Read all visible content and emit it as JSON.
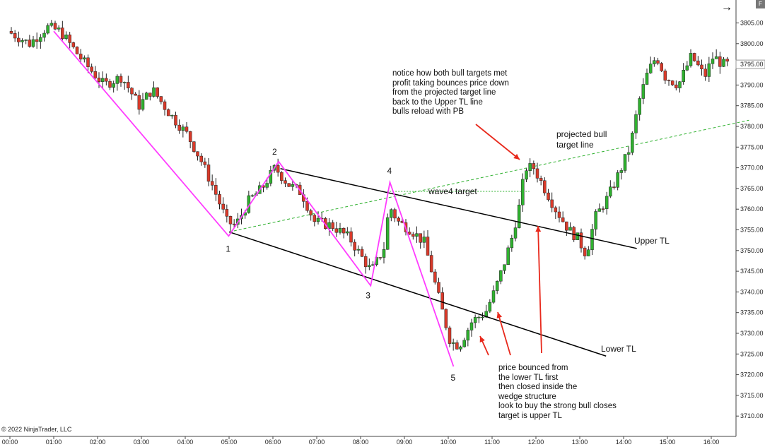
{
  "chart_data": {
    "type": "candlestick",
    "instrument_note": "© 2022 NinjaTrader, LLC",
    "y_axis": {
      "ticks": [
        "3805.00",
        "3800.00",
        "3795.00",
        "3790.00",
        "3785.00",
        "3780.00",
        "3775.00",
        "3770.00",
        "3765.00",
        "3760.00",
        "3755.00",
        "3750.00",
        "3745.00",
        "3740.00",
        "3735.00",
        "3730.00",
        "3725.00",
        "3720.00",
        "3715.00",
        "3710.00"
      ],
      "current_price_label": "3795.00",
      "range": [
        3707,
        3810
      ]
    },
    "x_axis": {
      "ticks": [
        "00:00",
        "01:00",
        "02:00",
        "03:00",
        "04:00",
        "05:00",
        "06:00",
        "07:00",
        "08:00",
        "09:00",
        "10:00",
        "11:00",
        "12:00",
        "13:00",
        "14:00",
        "15:00",
        "16:00"
      ]
    },
    "colors": {
      "up": "#2fb12f",
      "down": "#d93a2a",
      "wave": "#ff3cff",
      "trendline": "#000000",
      "target_line": "#2fb12f",
      "arrow": "#e8291c"
    },
    "price_path": [
      [
        0.0,
        3803
      ],
      [
        0.5,
        3800
      ],
      [
        0.9,
        3804
      ],
      [
        1.2,
        3803
      ],
      [
        1.7,
        3796
      ],
      [
        2.2,
        3790
      ],
      [
        2.6,
        3792
      ],
      [
        3.0,
        3785
      ],
      [
        3.3,
        3789
      ],
      [
        3.7,
        3783
      ],
      [
        4.1,
        3778
      ],
      [
        4.4,
        3772
      ],
      [
        4.7,
        3765
      ],
      [
        5.0,
        3757
      ],
      [
        5.2,
        3756
      ],
      [
        5.5,
        3762
      ],
      [
        5.8,
        3765
      ],
      [
        6.1,
        3770
      ],
      [
        6.4,
        3766
      ],
      [
        6.7,
        3764
      ],
      [
        7.0,
        3757
      ],
      [
        7.4,
        3756
      ],
      [
        7.8,
        3753
      ],
      [
        8.1,
        3748
      ],
      [
        8.3,
        3745
      ],
      [
        8.6,
        3751
      ],
      [
        8.7,
        3761
      ],
      [
        8.9,
        3757
      ],
      [
        9.2,
        3755
      ],
      [
        9.5,
        3752
      ],
      [
        9.8,
        3740
      ],
      [
        10.1,
        3728
      ],
      [
        10.3,
        3727
      ],
      [
        10.6,
        3733
      ],
      [
        10.9,
        3735
      ],
      [
        11.1,
        3740
      ],
      [
        11.3,
        3746
      ],
      [
        11.5,
        3753
      ],
      [
        11.7,
        3762
      ],
      [
        11.8,
        3770
      ],
      [
        12.0,
        3770
      ],
      [
        12.2,
        3766
      ],
      [
        12.5,
        3760
      ],
      [
        12.8,
        3755
      ],
      [
        13.0,
        3753
      ],
      [
        13.2,
        3749
      ],
      [
        13.4,
        3758
      ],
      [
        13.7,
        3763
      ],
      [
        14.0,
        3770
      ],
      [
        14.2,
        3775
      ],
      [
        14.4,
        3786
      ],
      [
        14.6,
        3793
      ],
      [
        14.8,
        3797
      ],
      [
        15.0,
        3792
      ],
      [
        15.3,
        3790
      ],
      [
        15.6,
        3797
      ],
      [
        15.9,
        3792
      ],
      [
        16.1,
        3797
      ],
      [
        16.3,
        3795
      ]
    ],
    "wave_points": [
      {
        "label": "1",
        "x": 4.99,
        "y": 3753.5
      },
      {
        "label": "2",
        "x": 6.13,
        "y": 3771.5
      },
      {
        "label": "3",
        "x": 8.23,
        "y": 3741.5
      },
      {
        "label": "4",
        "x": 8.67,
        "y": 3766.5
      },
      {
        "label": "5",
        "x": 10.12,
        "y": 3722.0
      }
    ],
    "wave_start": {
      "x": 1.0,
      "y": 3803.0
    },
    "trendlines": [
      {
        "label": "Upper TL",
        "x1": 6.17,
        "y1": 3769.8,
        "x2": 14.3,
        "y2": 3750.5
      },
      {
        "label": "Lower TL",
        "x1": 5.0,
        "y1": 3754.5,
        "x2": 13.6,
        "y2": 3724.5
      }
    ],
    "target_line": {
      "label": "projected bull\ntarget line",
      "x1": 5.0,
      "y1": 3754.5,
      "x2": 16.86,
      "y2": 3781.5
    },
    "wave4_target": {
      "label": "wave4 target",
      "x1": 8.6,
      "y1": 3764.3,
      "x2": 11.85,
      "y2": 3764.3
    },
    "annotations": [
      "notice how both bull targets met\nprofit taking bounces price down\nfrom the projected target line\nback to the Upper TL line\nbulls reload with PB",
      "price bounced from\nthe lower TL first\nthen closed inside the\nwedge structure\nlook to buy the strong bull closes\ntarget is upper TL"
    ]
  },
  "ui": {
    "nav_arrow": "→",
    "corner_button": "F"
  }
}
